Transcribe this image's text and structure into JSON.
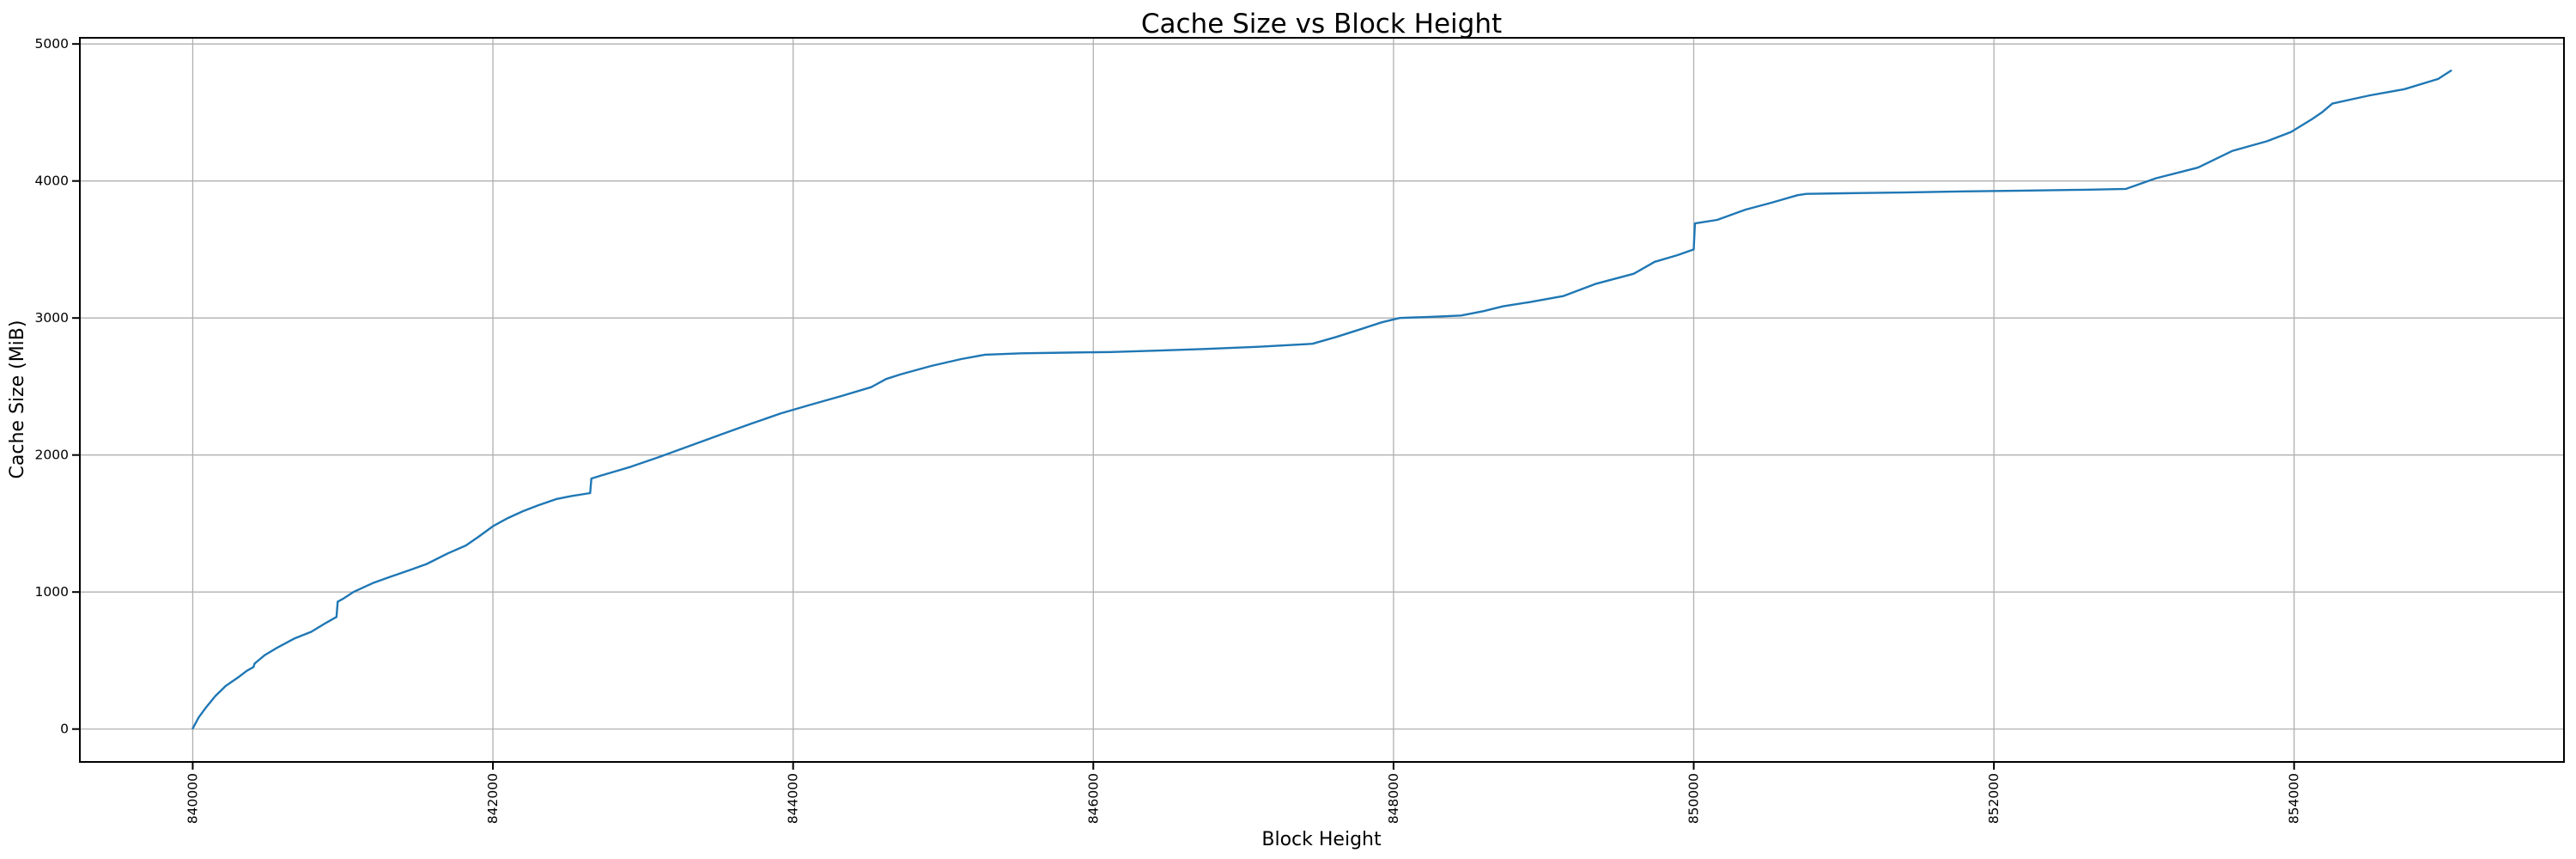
{
  "figure": {
    "title": "Cache Size vs Block Height"
  },
  "chart_data": {
    "type": "line",
    "title": "Cache Size vs Block Height",
    "xlabel": "Block Height",
    "ylabel": "Cache Size (MiB)",
    "xlim": [
      839248,
      855798
    ],
    "ylim": [
      -240,
      5045
    ],
    "x_ticks": [
      840000,
      842000,
      844000,
      846000,
      848000,
      850000,
      852000,
      854000
    ],
    "y_ticks": [
      0,
      1000,
      2000,
      3000,
      4000,
      5000
    ],
    "x_tick_rotation": 90,
    "grid": true,
    "legend": "none",
    "colors": {
      "line": "#1f77b4",
      "grid": "#b0b0b0",
      "spine": "#000000",
      "background": "#ffffff"
    },
    "series": [
      {
        "name": "Cache Size (MiB)",
        "x": [
          840000,
          840040,
          840090,
          840150,
          840220,
          840300,
          840360,
          840405,
          840412,
          840480,
          840560,
          840680,
          840790,
          840880,
          840958,
          840966,
          841000,
          841070,
          841200,
          841320,
          841440,
          841560,
          841700,
          841820,
          841900,
          842000,
          842100,
          842200,
          842300,
          842420,
          842520,
          842648,
          842656,
          842720,
          842820,
          842920,
          843120,
          843320,
          843520,
          843720,
          843920,
          844120,
          844320,
          844520,
          844620,
          844720,
          844920,
          845120,
          845280,
          845520,
          845820,
          846120,
          846420,
          846720,
          847100,
          847460,
          847620,
          847780,
          847920,
          848040,
          848240,
          848450,
          848600,
          848730,
          848900,
          849130,
          849350,
          849600,
          849740,
          849890,
          850000,
          850008,
          850156,
          850346,
          850518,
          850690,
          850750,
          851000,
          851400,
          851800,
          852200,
          852600,
          852880,
          853080,
          853360,
          853590,
          853820,
          853980,
          854050,
          854120,
          854185,
          854255,
          854400,
          854505,
          854735,
          854960,
          855045
        ],
        "y": [
          5,
          85,
          160,
          240,
          315,
          375,
          425,
          452,
          478,
          540,
          592,
          662,
          710,
          770,
          818,
          930,
          950,
          1000,
          1065,
          1112,
          1158,
          1205,
          1282,
          1340,
          1400,
          1480,
          1540,
          1590,
          1632,
          1678,
          1700,
          1722,
          1828,
          1850,
          1882,
          1915,
          1990,
          2070,
          2150,
          2228,
          2305,
          2368,
          2430,
          2495,
          2555,
          2590,
          2650,
          2700,
          2732,
          2742,
          2747,
          2752,
          2762,
          2773,
          2790,
          2812,
          2862,
          2918,
          2968,
          3000,
          3008,
          3018,
          3050,
          3085,
          3115,
          3160,
          3250,
          3323,
          3410,
          3458,
          3500,
          3690,
          3716,
          3791,
          3841,
          3896,
          3906,
          3910,
          3916,
          3924,
          3930,
          3936,
          3942,
          4020,
          4098,
          4220,
          4290,
          4358,
          4405,
          4452,
          4500,
          4565,
          4600,
          4625,
          4670,
          4745,
          4805
        ]
      }
    ]
  }
}
